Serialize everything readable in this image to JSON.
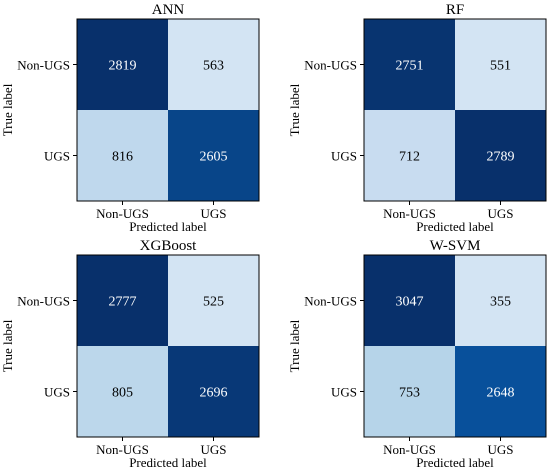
{
  "chart_data": [
    {
      "type": "heatmap",
      "title": "ANN",
      "xlabel": "Predicted label",
      "ylabel": "True label",
      "x_categories": [
        "Non-UGS",
        "UGS"
      ],
      "y_categories": [
        "Non-UGS",
        "UGS"
      ],
      "matrix": [
        [
          2819,
          563
        ],
        [
          816,
          2605
        ]
      ]
    },
    {
      "type": "heatmap",
      "title": "RF",
      "xlabel": "Predicted label",
      "ylabel": "True label",
      "x_categories": [
        "Non-UGS",
        "UGS"
      ],
      "y_categories": [
        "Non-UGS",
        "UGS"
      ],
      "matrix": [
        [
          2751,
          551
        ],
        [
          712,
          2789
        ]
      ]
    },
    {
      "type": "heatmap",
      "title": "XGBoost",
      "xlabel": "Predicted label",
      "ylabel": "True label",
      "x_categories": [
        "Non-UGS",
        "UGS"
      ],
      "y_categories": [
        "Non-UGS",
        "UGS"
      ],
      "matrix": [
        [
          2777,
          525
        ],
        [
          805,
          2696
        ]
      ]
    },
    {
      "type": "heatmap",
      "title": "W-SVM",
      "xlabel": "Predicted label",
      "ylabel": "True label",
      "x_categories": [
        "Non-UGS",
        "UGS"
      ],
      "y_categories": [
        "Non-UGS",
        "UGS"
      ],
      "matrix": [
        [
          3047,
          355
        ],
        [
          753,
          2648
        ]
      ]
    }
  ],
  "colormap": {
    "name": "Blues",
    "low_color": "#f7fbff",
    "high_color": "#08306b",
    "text_on_dark": "#ffffff",
    "text_on_light": "#000000"
  }
}
